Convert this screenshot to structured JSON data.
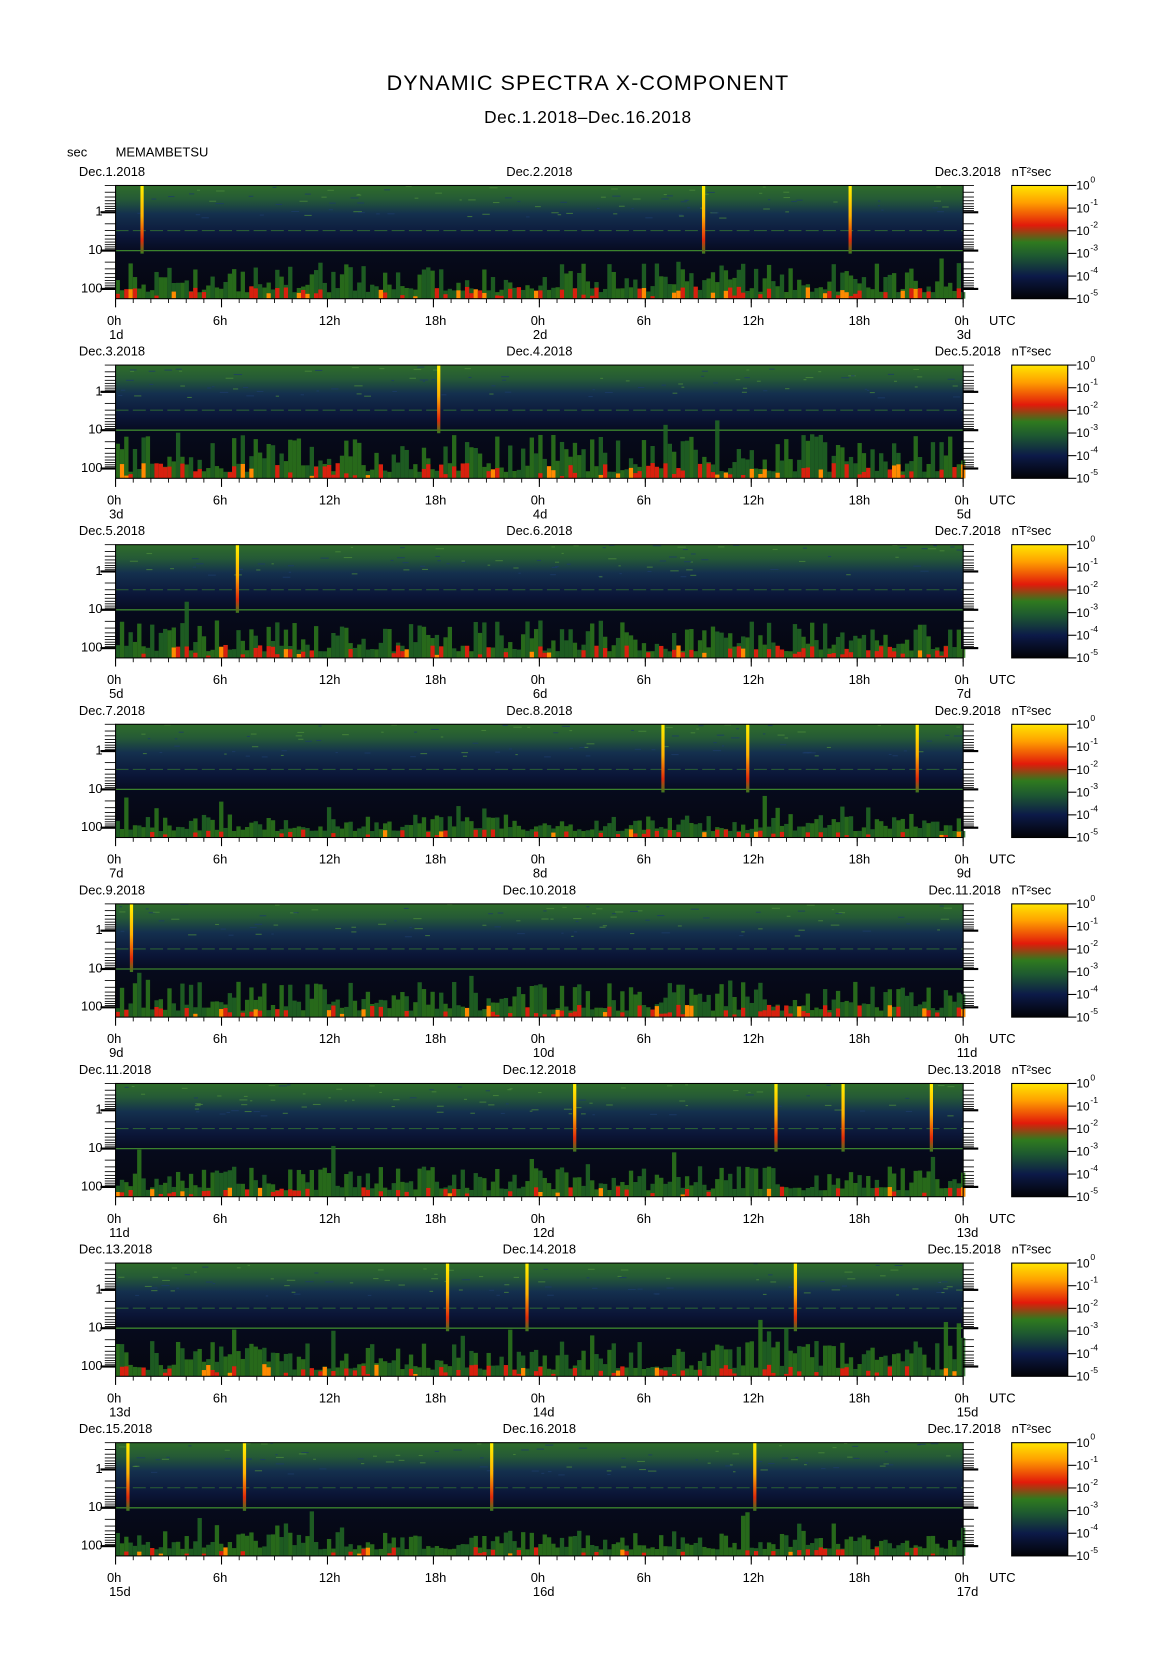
{
  "header": {
    "title": "DYNAMIC SPECTRA X-COMPONENT",
    "subtitle": "Dec.1.2018–Dec.16.2018",
    "y_unit": "sec",
    "station": "MEMAMBETSU"
  },
  "axes": {
    "xlim": [
      0,
      48
    ],
    "xticks": [
      {
        "value": 0,
        "label": "0h"
      },
      {
        "value": 6,
        "label": "6h"
      },
      {
        "value": 12,
        "label": "12h"
      },
      {
        "value": 18,
        "label": "18h"
      },
      {
        "value": 24,
        "label": "0h"
      },
      {
        "value": 30,
        "label": "6h"
      },
      {
        "value": 36,
        "label": "12h"
      },
      {
        "value": 42,
        "label": "18h"
      },
      {
        "value": 48,
        "label": "0h"
      }
    ],
    "x_unit": "UTC",
    "y_scale": "log",
    "ylim": [
      0.2,
      180
    ],
    "yticks": [
      1,
      10,
      100
    ],
    "colorbar_unit": "nT²sec",
    "colorbar_base": "10",
    "colorbar_exponents": [
      0,
      -1,
      -2,
      -3,
      -4,
      -5
    ]
  },
  "panels": [
    {
      "start_date": "Dec.1.2018",
      "mid_date": "Dec.2.2018",
      "end_date": "Dec.3.2018",
      "day_labels": [
        "1d",
        "2d",
        "3d"
      ],
      "spikes_h": [
        1.5,
        33.3,
        41.6
      ]
    },
    {
      "start_date": "Dec.3.2018",
      "mid_date": "Dec.4.2018",
      "end_date": "Dec.5.2018",
      "day_labels": [
        "3d",
        "4d",
        "5d"
      ],
      "spikes_h": [
        18.3
      ]
    },
    {
      "start_date": "Dec.5.2018",
      "mid_date": "Dec.6.2018",
      "end_date": "Dec.7.2018",
      "day_labels": [
        "5d",
        "6d",
        "7d"
      ],
      "spikes_h": [
        6.9
      ]
    },
    {
      "start_date": "Dec.7.2018",
      "mid_date": "Dec.8.2018",
      "end_date": "Dec.9.2018",
      "day_labels": [
        "7d",
        "8d",
        "9d"
      ],
      "spikes_h": [
        31.0,
        35.8,
        45.4
      ]
    },
    {
      "start_date": "Dec.9.2018",
      "mid_date": "Dec.10.2018",
      "end_date": "Dec.11.2018",
      "day_labels": [
        "9d",
        "10d",
        "11d"
      ],
      "spikes_h": [
        0.9
      ]
    },
    {
      "start_date": "Dec.11.2018",
      "mid_date": "Dec.12.2018",
      "end_date": "Dec.13.2018",
      "day_labels": [
        "11d",
        "12d",
        "13d"
      ],
      "spikes_h": [
        26.0,
        37.4,
        41.2,
        46.2
      ]
    },
    {
      "start_date": "Dec.13.2018",
      "mid_date": "Dec.14.2018",
      "end_date": "Dec.15.2018",
      "day_labels": [
        "13d",
        "14d",
        "15d"
      ],
      "spikes_h": [
        18.8,
        23.3,
        38.5
      ]
    },
    {
      "start_date": "Dec.15.2018",
      "mid_date": "Dec.16.2018",
      "end_date": "Dec.17.2018",
      "day_labels": [
        "15d",
        "16d",
        "17d"
      ],
      "spikes_h": [
        0.7,
        7.3,
        21.3,
        36.2
      ]
    }
  ]
}
